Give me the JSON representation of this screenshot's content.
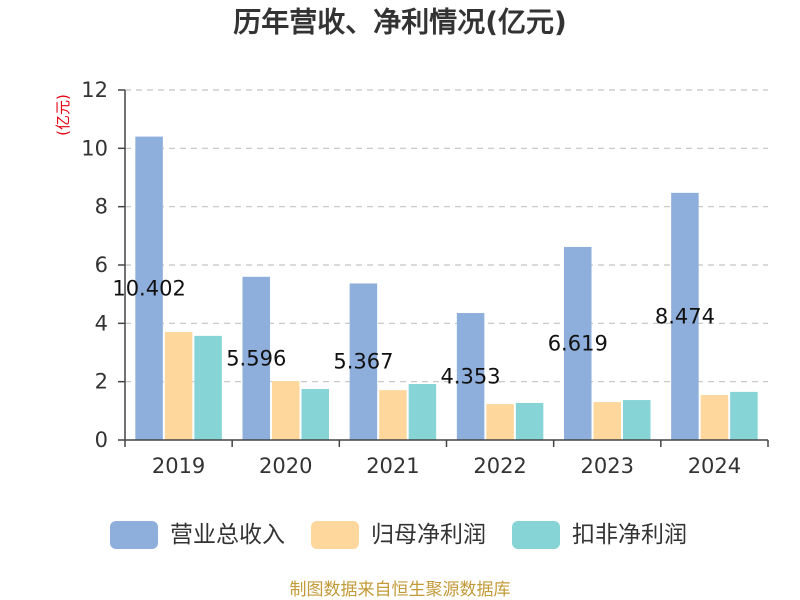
{
  "chart_data": {
    "type": "bar",
    "title": "历年营收、净利情况(亿元)",
    "xlabel": "",
    "ylabel": "(亿元)",
    "categories": [
      "2019",
      "2020",
      "2021",
      "2022",
      "2023",
      "2024"
    ],
    "ylim": [
      0,
      12
    ],
    "yticks": [
      0,
      2,
      4,
      6,
      8,
      10,
      12
    ],
    "grid": true,
    "legend": "bottom",
    "series": [
      {
        "name": "营业总收入",
        "color": "#8EAEDB",
        "data_labels": true,
        "values": [
          10.402,
          5.596,
          5.367,
          4.353,
          6.619,
          8.474
        ]
      },
      {
        "name": "归母净利润",
        "color": "#FDD79B",
        "data_labels": false,
        "values": [
          3.7,
          2.02,
          1.71,
          1.23,
          1.3,
          1.54
        ]
      },
      {
        "name": "扣非净利润",
        "color": "#87D4D6",
        "data_labels": false,
        "values": [
          3.57,
          1.75,
          1.92,
          1.27,
          1.37,
          1.65
        ]
      }
    ]
  },
  "colors": {
    "title": "#333333",
    "axis_label": "#E60012",
    "source": "#C39A38"
  },
  "footer": {
    "source": "制图数据来自恒生聚源数据库"
  }
}
